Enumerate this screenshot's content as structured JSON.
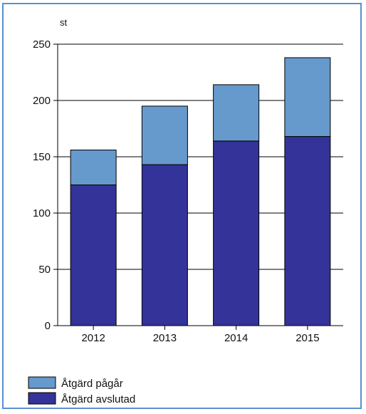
{
  "chart_data": {
    "type": "bar",
    "stacked": true,
    "ylabel": "st",
    "ylim": [
      0,
      250
    ],
    "yticks": [
      0,
      50,
      100,
      150,
      200,
      250
    ],
    "categories": [
      "2012",
      "2013",
      "2014",
      "2015"
    ],
    "series": [
      {
        "name": "Åtgärd avslutad",
        "color": "#333399",
        "values": [
          125,
          143,
          164,
          168
        ]
      },
      {
        "name": "Åtgärd pågår",
        "color": "#6699cc",
        "values": [
          31,
          52,
          50,
          70
        ]
      }
    ],
    "grid": true,
    "legend_position": "bottom-left"
  }
}
